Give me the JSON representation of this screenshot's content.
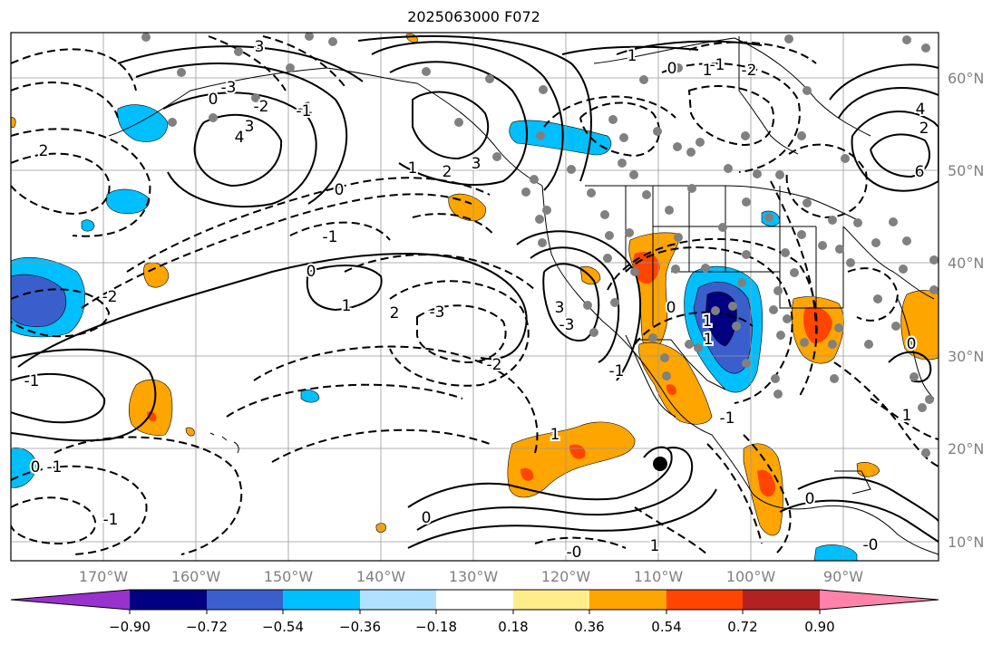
{
  "title": "2025063000 F072",
  "lat_labels": [
    "60°N",
    "50°N",
    "40°N",
    "30°N",
    "20°N",
    "10°N"
  ],
  "lon_labels": [
    "170°W",
    "160°W",
    "150°W",
    "140°W",
    "130°W",
    "120°W",
    "110°W",
    "100°W",
    "90°W"
  ],
  "colorbar": {
    "ticks": [
      "−0.90",
      "−0.72",
      "−0.54",
      "−0.36",
      "−0.18",
      "0.18",
      "0.36",
      "0.54",
      "0.72",
      "0.90"
    ],
    "colors": [
      "#9932cc",
      "#000080",
      "#3a5fcd",
      "#00bfff",
      "#b0e2ff",
      "#ffffff",
      "#ffec8b",
      "#ffa500",
      "#ff4500",
      "#b22222",
      "#ff82ab"
    ]
  },
  "contour_labels": [
    "3",
    "4",
    "3",
    "2",
    "1",
    "0",
    "-1",
    "-2",
    "-3",
    "-2",
    "-1",
    "0",
    "1",
    "2",
    "3",
    "4",
    "6",
    "2",
    "-1",
    "0",
    "1",
    "-1",
    "-1",
    "0",
    "-3",
    "-2",
    "-1",
    "0",
    "1",
    "1",
    "0",
    "-0",
    "-1",
    "1",
    "0",
    "-1",
    "-0",
    "-2",
    "1",
    "3",
    "1",
    "3",
    "-3",
    "2",
    "0",
    "-1",
    "3",
    "-2",
    "0",
    "1"
  ],
  "marker": {
    "name": "black dot",
    "lon": -110,
    "lat": 18
  }
}
